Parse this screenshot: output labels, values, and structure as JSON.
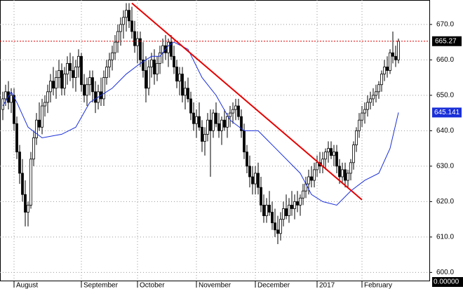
{
  "chart_data": {
    "type": "candlestick",
    "categories": [
      null,
      null,
      null,
      null,
      "August",
      null,
      null,
      null,
      null,
      null,
      null,
      null,
      null,
      null,
      null,
      null,
      null,
      null,
      null,
      null,
      null,
      null,
      null,
      null,
      null,
      null,
      null,
      null,
      "September",
      null,
      null,
      null,
      null,
      null,
      null,
      null,
      null,
      null,
      null,
      null,
      null,
      null,
      null,
      null,
      null,
      null,
      null,
      null,
      "October",
      null,
      null,
      null,
      null,
      null,
      null,
      null,
      null,
      null,
      null,
      null,
      null,
      null,
      null,
      null,
      null,
      null,
      null,
      null,
      null,
      "November",
      null,
      null,
      null,
      null,
      null,
      null,
      null,
      null,
      null,
      null,
      null,
      null,
      null,
      null,
      null,
      null,
      null,
      null,
      null,
      null,
      "December",
      null,
      null,
      null,
      null,
      null,
      null,
      null,
      null,
      null,
      null,
      null,
      null,
      null,
      null,
      null,
      null,
      null,
      null,
      null,
      null,
      null,
      "2017",
      null,
      null,
      null,
      null,
      null,
      null,
      null,
      null,
      null,
      null,
      null,
      null,
      null,
      null,
      null,
      "February",
      null,
      null,
      null,
      null,
      null,
      null,
      null,
      null,
      null,
      null,
      null,
      null,
      null
    ],
    "candles": [
      [
        646,
        651,
        643,
        649
      ],
      [
        649,
        653,
        647,
        651
      ],
      [
        651,
        654,
        646,
        648
      ],
      [
        648,
        652,
        645,
        650
      ],
      [
        650,
        652,
        640,
        642
      ],
      [
        642,
        644,
        632,
        634
      ],
      [
        634,
        636,
        625,
        628
      ],
      [
        628,
        632,
        620,
        622
      ],
      [
        622,
        626,
        613,
        617
      ],
      [
        617,
        620,
        613,
        619
      ],
      [
        619,
        634,
        618,
        632
      ],
      [
        632,
        640,
        630,
        638
      ],
      [
        638,
        645,
        636,
        643
      ],
      [
        643,
        648,
        640,
        641
      ],
      [
        641,
        649,
        639,
        647
      ],
      [
        647,
        650,
        644,
        648
      ],
      [
        648,
        653,
        645,
        651
      ],
      [
        651,
        656,
        648,
        654
      ],
      [
        654,
        658,
        650,
        652
      ],
      [
        652,
        657,
        649,
        655
      ],
      [
        655,
        660,
        652,
        657
      ],
      [
        657,
        659,
        650,
        652
      ],
      [
        652,
        658,
        650,
        656
      ],
      [
        656,
        661,
        653,
        659
      ],
      [
        659,
        662,
        654,
        657
      ],
      [
        657,
        661,
        652,
        655
      ],
      [
        655,
        660,
        651,
        658
      ],
      [
        658,
        663,
        655,
        661
      ],
      [
        661,
        662,
        651,
        653
      ],
      [
        653,
        656,
        648,
        650
      ],
      [
        650,
        655,
        647,
        653
      ],
      [
        653,
        657,
        650,
        655
      ],
      [
        655,
        657,
        648,
        651
      ],
      [
        651,
        654,
        645,
        648
      ],
      [
        648,
        653,
        646,
        651
      ],
      [
        651,
        655,
        647,
        649
      ],
      [
        649,
        657,
        647,
        655
      ],
      [
        655,
        660,
        653,
        658
      ],
      [
        658,
        662,
        655,
        660
      ],
      [
        660,
        664,
        657,
        662
      ],
      [
        662,
        667,
        660,
        665
      ],
      [
        665,
        670,
        662,
        668
      ],
      [
        668,
        672,
        664,
        670
      ],
      [
        670,
        674,
        666,
        672
      ],
      [
        672,
        676,
        668,
        674
      ],
      [
        674,
        676,
        669,
        671
      ],
      [
        671,
        675,
        666,
        668
      ],
      [
        668,
        671,
        662,
        664
      ],
      [
        664,
        668,
        659,
        666
      ],
      [
        666,
        668,
        658,
        660
      ],
      [
        660,
        665,
        655,
        657
      ],
      [
        657,
        661,
        648,
        652
      ],
      [
        652,
        660,
        650,
        658
      ],
      [
        658,
        662,
        655,
        660
      ],
      [
        660,
        663,
        653,
        656
      ],
      [
        656,
        661,
        654,
        659
      ],
      [
        659,
        664,
        656,
        662
      ],
      [
        662,
        666,
        659,
        664
      ],
      [
        664,
        667,
        660,
        662
      ],
      [
        662,
        666,
        658,
        665
      ],
      [
        665,
        667,
        660,
        661
      ],
      [
        661,
        664,
        656,
        658
      ],
      [
        658,
        660,
        652,
        654
      ],
      [
        654,
        658,
        650,
        656
      ],
      [
        656,
        658,
        648,
        650
      ],
      [
        650,
        654,
        646,
        652
      ],
      [
        652,
        655,
        648,
        649
      ],
      [
        649,
        651,
        643,
        645
      ],
      [
        645,
        648,
        640,
        642
      ],
      [
        642,
        646,
        638,
        644
      ],
      [
        644,
        648,
        640,
        641
      ],
      [
        641,
        643,
        634,
        637
      ],
      [
        637,
        641,
        633,
        639
      ],
      [
        639,
        645,
        637,
        643
      ],
      [
        643,
        646,
        627,
        640
      ],
      [
        640,
        646,
        638,
        645
      ],
      [
        645,
        648,
        641,
        642
      ],
      [
        642,
        645,
        638,
        640
      ],
      [
        640,
        644,
        636,
        643
      ],
      [
        643,
        646,
        640,
        641
      ],
      [
        641,
        645,
        638,
        644
      ],
      [
        644,
        647,
        641,
        645
      ],
      [
        645,
        648,
        642,
        646
      ],
      [
        646,
        649,
        643,
        647
      ],
      [
        647,
        649,
        643,
        644
      ],
      [
        644,
        646,
        638,
        640
      ],
      [
        640,
        642,
        632,
        634
      ],
      [
        634,
        636,
        628,
        630
      ],
      [
        630,
        633,
        624,
        627
      ],
      [
        627,
        630,
        622,
        625
      ],
      [
        625,
        630,
        622,
        628
      ],
      [
        628,
        631,
        622,
        624
      ],
      [
        624,
        627,
        617,
        619
      ],
      [
        619,
        622,
        614,
        616
      ],
      [
        616,
        621,
        614,
        619
      ],
      [
        619,
        623,
        616,
        617
      ],
      [
        617,
        620,
        612,
        614
      ],
      [
        614,
        618,
        610,
        612
      ],
      [
        612,
        616,
        608,
        611
      ],
      [
        611,
        617,
        609,
        615
      ],
      [
        615,
        620,
        613,
        618
      ],
      [
        618,
        622,
        615,
        616
      ],
      [
        616,
        621,
        614,
        619
      ],
      [
        619,
        623,
        616,
        618
      ],
      [
        618,
        622,
        615,
        620
      ],
      [
        620,
        623,
        617,
        619
      ],
      [
        619,
        622,
        616,
        621
      ],
      [
        621,
        625,
        619,
        623
      ],
      [
        623,
        627,
        621,
        625
      ],
      [
        625,
        629,
        622,
        627
      ],
      [
        627,
        630,
        624,
        626
      ],
      [
        626,
        631,
        624,
        629
      ],
      [
        629,
        633,
        627,
        631
      ],
      [
        631,
        634,
        628,
        630
      ],
      [
        630,
        634,
        628,
        632
      ],
      [
        632,
        635,
        629,
        634
      ],
      [
        634,
        637,
        631,
        635
      ],
      [
        635,
        637,
        632,
        633
      ],
      [
        633,
        636,
        630,
        634
      ],
      [
        634,
        636,
        628,
        630
      ],
      [
        630,
        632,
        625,
        627
      ],
      [
        627,
        631,
        625,
        629
      ],
      [
        629,
        631,
        624,
        626
      ],
      [
        626,
        629,
        624,
        628
      ],
      [
        628,
        632,
        626,
        631
      ],
      [
        631,
        637,
        629,
        636
      ],
      [
        636,
        641,
        634,
        640
      ],
      [
        640,
        645,
        638,
        643
      ],
      [
        643,
        647,
        641,
        645
      ],
      [
        645,
        648,
        642,
        646
      ],
      [
        646,
        650,
        644,
        648
      ],
      [
        648,
        651,
        646,
        649
      ],
      [
        649,
        652,
        647,
        650
      ],
      [
        650,
        653,
        648,
        651
      ],
      [
        651,
        654,
        649,
        653
      ],
      [
        653,
        657,
        651,
        656
      ],
      [
        656,
        660,
        654,
        658
      ],
      [
        658,
        661,
        655,
        657
      ],
      [
        657,
        663,
        656,
        662
      ],
      [
        662,
        668,
        659,
        661
      ],
      [
        661,
        664,
        658,
        660
      ],
      [
        660,
        666,
        659,
        665.27
      ]
    ],
    "moving_average": {
      "color": "#1a2fd8",
      "x": [
        0,
        3,
        5,
        9,
        14,
        21,
        26,
        31,
        39,
        44,
        49,
        53,
        56,
        59,
        61,
        66,
        71,
        76,
        81,
        86,
        91,
        96,
        106,
        110,
        114,
        119,
        124,
        129,
        134,
        138,
        141
      ],
      "values": [
        647,
        651,
        648,
        641,
        638,
        639,
        641,
        648,
        652,
        656,
        659,
        661,
        661,
        664,
        665,
        663,
        655,
        650,
        643,
        640,
        640,
        636,
        628,
        622,
        620,
        619,
        623,
        626,
        628,
        635,
        645.141
      ]
    },
    "trendline": {
      "color": "#e60000",
      "from": [
        46,
        676
      ],
      "to": [
        128,
        620.5
      ]
    },
    "ylim": [
      597.7,
      676.9
    ],
    "yticks": [
      {
        "value": 600,
        "label": "600.0"
      },
      {
        "value": 610,
        "label": "610.0"
      },
      {
        "value": 620,
        "label": "620.0"
      },
      {
        "value": 630,
        "label": "630.0"
      },
      {
        "value": 640,
        "label": "640.0"
      },
      {
        "value": 650,
        "label": "650.0"
      },
      {
        "value": 660,
        "label": "660.0"
      },
      {
        "value": 670,
        "label": "670.0"
      }
    ],
    "grid": true,
    "bottom_readout": "0.00000"
  }
}
